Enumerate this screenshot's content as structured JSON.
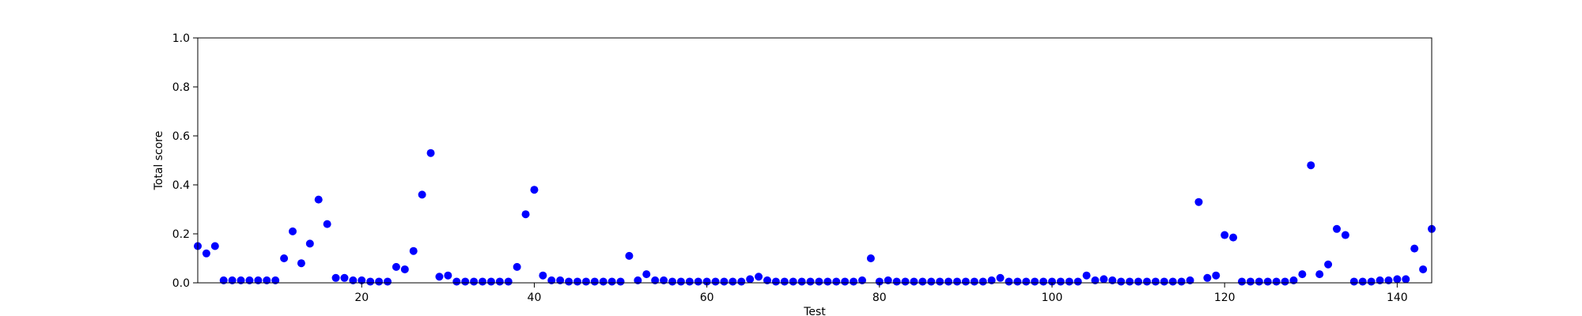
{
  "chart_data": {
    "type": "scatter",
    "xlabel": "Test",
    "ylabel": "Total score",
    "xlim": [
      1,
      144
    ],
    "ylim": [
      0,
      1.0
    ],
    "grid": false,
    "legend": "none",
    "marker_color": "#0000ff",
    "x_ticks": [
      {
        "value": 20,
        "label": "20"
      },
      {
        "value": 40,
        "label": "40"
      },
      {
        "value": 60,
        "label": "60"
      },
      {
        "value": 80,
        "label": "80"
      },
      {
        "value": 100,
        "label": "100"
      },
      {
        "value": 120,
        "label": "120"
      },
      {
        "value": 140,
        "label": "140"
      }
    ],
    "y_ticks": [
      {
        "value": 0.0,
        "label": "0.0"
      },
      {
        "value": 0.2,
        "label": "0.2"
      },
      {
        "value": 0.4,
        "label": "0.4"
      },
      {
        "value": 0.6,
        "label": "0.6"
      },
      {
        "value": 0.8,
        "label": "0.8"
      },
      {
        "value": 1.0,
        "label": "1.0"
      }
    ],
    "points": [
      [
        1,
        0.15
      ],
      [
        2,
        0.12
      ],
      [
        3,
        0.15
      ],
      [
        4,
        0.01
      ],
      [
        5,
        0.01
      ],
      [
        6,
        0.01
      ],
      [
        7,
        0.01
      ],
      [
        8,
        0.01
      ],
      [
        9,
        0.01
      ],
      [
        10,
        0.01
      ],
      [
        11,
        0.1
      ],
      [
        12,
        0.21
      ],
      [
        13,
        0.08
      ],
      [
        14,
        0.16
      ],
      [
        15,
        0.34
      ],
      [
        16,
        0.24
      ],
      [
        17,
        0.02
      ],
      [
        18,
        0.02
      ],
      [
        19,
        0.01
      ],
      [
        20,
        0.01
      ],
      [
        21,
        0.005
      ],
      [
        22,
        0.005
      ],
      [
        23,
        0.005
      ],
      [
        24,
        0.065
      ],
      [
        25,
        0.055
      ],
      [
        26,
        0.13
      ],
      [
        27,
        0.36
      ],
      [
        28,
        0.53
      ],
      [
        29,
        0.025
      ],
      [
        30,
        0.03
      ],
      [
        31,
        0.005
      ],
      [
        32,
        0.005
      ],
      [
        33,
        0.005
      ],
      [
        34,
        0.005
      ],
      [
        35,
        0.005
      ],
      [
        36,
        0.005
      ],
      [
        37,
        0.005
      ],
      [
        38,
        0.065
      ],
      [
        39,
        0.28
      ],
      [
        40,
        0.38
      ],
      [
        41,
        0.03
      ],
      [
        42,
        0.01
      ],
      [
        43,
        0.01
      ],
      [
        44,
        0.005
      ],
      [
        45,
        0.005
      ],
      [
        46,
        0.005
      ],
      [
        47,
        0.005
      ],
      [
        48,
        0.005
      ],
      [
        49,
        0.005
      ],
      [
        50,
        0.005
      ],
      [
        51,
        0.11
      ],
      [
        52,
        0.01
      ],
      [
        53,
        0.035
      ],
      [
        54,
        0.01
      ],
      [
        55,
        0.01
      ],
      [
        56,
        0.005
      ],
      [
        57,
        0.005
      ],
      [
        58,
        0.005
      ],
      [
        59,
        0.005
      ],
      [
        60,
        0.005
      ],
      [
        61,
        0.005
      ],
      [
        62,
        0.005
      ],
      [
        63,
        0.005
      ],
      [
        64,
        0.005
      ],
      [
        65,
        0.015
      ],
      [
        66,
        0.025
      ],
      [
        67,
        0.01
      ],
      [
        68,
        0.005
      ],
      [
        69,
        0.005
      ],
      [
        70,
        0.005
      ],
      [
        71,
        0.005
      ],
      [
        72,
        0.005
      ],
      [
        73,
        0.005
      ],
      [
        74,
        0.005
      ],
      [
        75,
        0.005
      ],
      [
        76,
        0.005
      ],
      [
        77,
        0.005
      ],
      [
        78,
        0.01
      ],
      [
        79,
        0.1
      ],
      [
        80,
        0.005
      ],
      [
        81,
        0.01
      ],
      [
        82,
        0.005
      ],
      [
        83,
        0.005
      ],
      [
        84,
        0.005
      ],
      [
        85,
        0.005
      ],
      [
        86,
        0.005
      ],
      [
        87,
        0.005
      ],
      [
        88,
        0.005
      ],
      [
        89,
        0.005
      ],
      [
        90,
        0.005
      ],
      [
        91,
        0.005
      ],
      [
        92,
        0.005
      ],
      [
        93,
        0.01
      ],
      [
        94,
        0.02
      ],
      [
        95,
        0.005
      ],
      [
        96,
        0.005
      ],
      [
        97,
        0.005
      ],
      [
        98,
        0.005
      ],
      [
        99,
        0.005
      ],
      [
        100,
        0.005
      ],
      [
        101,
        0.005
      ],
      [
        102,
        0.005
      ],
      [
        103,
        0.005
      ],
      [
        104,
        0.03
      ],
      [
        105,
        0.01
      ],
      [
        106,
        0.015
      ],
      [
        107,
        0.01
      ],
      [
        108,
        0.005
      ],
      [
        109,
        0.005
      ],
      [
        110,
        0.005
      ],
      [
        111,
        0.005
      ],
      [
        112,
        0.005
      ],
      [
        113,
        0.005
      ],
      [
        114,
        0.005
      ],
      [
        115,
        0.005
      ],
      [
        116,
        0.01
      ],
      [
        117,
        0.33
      ],
      [
        118,
        0.02
      ],
      [
        119,
        0.03
      ],
      [
        120,
        0.195
      ],
      [
        121,
        0.185
      ],
      [
        122,
        0.005
      ],
      [
        123,
        0.005
      ],
      [
        124,
        0.005
      ],
      [
        125,
        0.005
      ],
      [
        126,
        0.005
      ],
      [
        127,
        0.005
      ],
      [
        128,
        0.01
      ],
      [
        129,
        0.035
      ],
      [
        130,
        0.48
      ],
      [
        131,
        0.035
      ],
      [
        132,
        0.075
      ],
      [
        133,
        0.22
      ],
      [
        134,
        0.195
      ],
      [
        135,
        0.005
      ],
      [
        136,
        0.005
      ],
      [
        137,
        0.005
      ],
      [
        138,
        0.01
      ],
      [
        139,
        0.01
      ],
      [
        140,
        0.015
      ],
      [
        141,
        0.015
      ],
      [
        142,
        0.14
      ],
      [
        143,
        0.055
      ],
      [
        144,
        0.22
      ]
    ]
  }
}
